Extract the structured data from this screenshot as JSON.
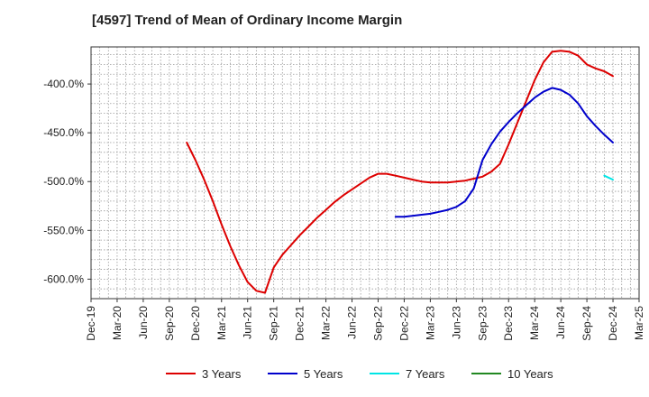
{
  "chart_data": {
    "type": "line",
    "title": "[4597]  Trend of Mean of Ordinary Income Margin",
    "xlabel": "",
    "ylabel": "",
    "x_ticks": [
      "Dec-19",
      "Mar-20",
      "Jun-20",
      "Sep-20",
      "Dec-20",
      "Mar-21",
      "Jun-21",
      "Sep-21",
      "Dec-21",
      "Mar-22",
      "Jun-22",
      "Sep-22",
      "Dec-22",
      "Mar-23",
      "Jun-23",
      "Sep-23",
      "Dec-23",
      "Mar-24",
      "Jun-24",
      "Sep-24",
      "Dec-24",
      "Mar-25"
    ],
    "y_ticks": [
      -400,
      -450,
      -500,
      -550,
      -600
    ],
    "y_tick_labels": [
      "-400.0%",
      "-450.0%",
      "-500.0%",
      "-550.0%",
      "-600.0%"
    ],
    "ylim": [
      -620,
      -362
    ],
    "grid": true,
    "legend_position": "bottom",
    "series": [
      {
        "name": "3 Years",
        "color": "#dd0000",
        "x": [
          "Nov-20",
          "Dec-20",
          "Jan-21",
          "Feb-21",
          "Mar-21",
          "Apr-21",
          "May-21",
          "Jun-21",
          "Jul-21",
          "Aug-21",
          "Sep-21",
          "Oct-21",
          "Nov-21",
          "Dec-21",
          "Jan-22",
          "Feb-22",
          "Mar-22",
          "Apr-22",
          "May-22",
          "Jun-22",
          "Jul-22",
          "Aug-22",
          "Sep-22",
          "Oct-22",
          "Nov-22",
          "Dec-22",
          "Jan-23",
          "Feb-23",
          "Mar-23",
          "Apr-23",
          "May-23",
          "Jun-23",
          "Jul-23",
          "Aug-23",
          "Sep-23",
          "Oct-23",
          "Nov-23",
          "Dec-23",
          "Jan-24",
          "Feb-24",
          "Mar-24",
          "Apr-24",
          "May-24",
          "Jun-24",
          "Jul-24",
          "Aug-24",
          "Sep-24",
          "Oct-24",
          "Nov-24",
          "Dec-24"
        ],
        "values": [
          -460,
          -478,
          -498,
          -520,
          -544,
          -566,
          -586,
          -603,
          -612,
          -614,
          -588,
          -575,
          -565,
          -555,
          -546,
          -537,
          -529,
          -521,
          -514,
          -508,
          -502,
          -496,
          -492,
          -492,
          -494,
          -496,
          -498,
          -500,
          -501,
          -501,
          -501,
          -500,
          -499,
          -497,
          -495,
          -490,
          -482,
          -462,
          -440,
          -418,
          -396,
          -378,
          -367,
          -366,
          -367,
          -371,
          -380,
          -384,
          -387,
          -392
        ]
      },
      {
        "name": "5 Years",
        "color": "#0000cc",
        "x": [
          "Nov-22",
          "Dec-22",
          "Jan-23",
          "Feb-23",
          "Mar-23",
          "Apr-23",
          "May-23",
          "Jun-23",
          "Jul-23",
          "Aug-23",
          "Sep-23",
          "Oct-23",
          "Nov-23",
          "Dec-23",
          "Jan-24",
          "Feb-24",
          "Mar-24",
          "Apr-24",
          "May-24",
          "Jun-24",
          "Jul-24",
          "Aug-24",
          "Sep-24",
          "Oct-24",
          "Nov-24",
          "Dec-24"
        ],
        "values": [
          -536,
          -536,
          -535,
          -534,
          -533,
          -531,
          -529,
          -526,
          -520,
          -507,
          -478,
          -462,
          -449,
          -439,
          -430,
          -422,
          -414,
          -408,
          -404,
          -406,
          -411,
          -420,
          -433,
          -443,
          -452,
          -460
        ]
      },
      {
        "name": "7 Years",
        "color": "#00e5e5",
        "x": [
          "Nov-24",
          "Dec-24"
        ],
        "values": [
          -494,
          -498
        ]
      },
      {
        "name": "10 Years",
        "color": "#228822",
        "x": [],
        "values": []
      }
    ]
  }
}
